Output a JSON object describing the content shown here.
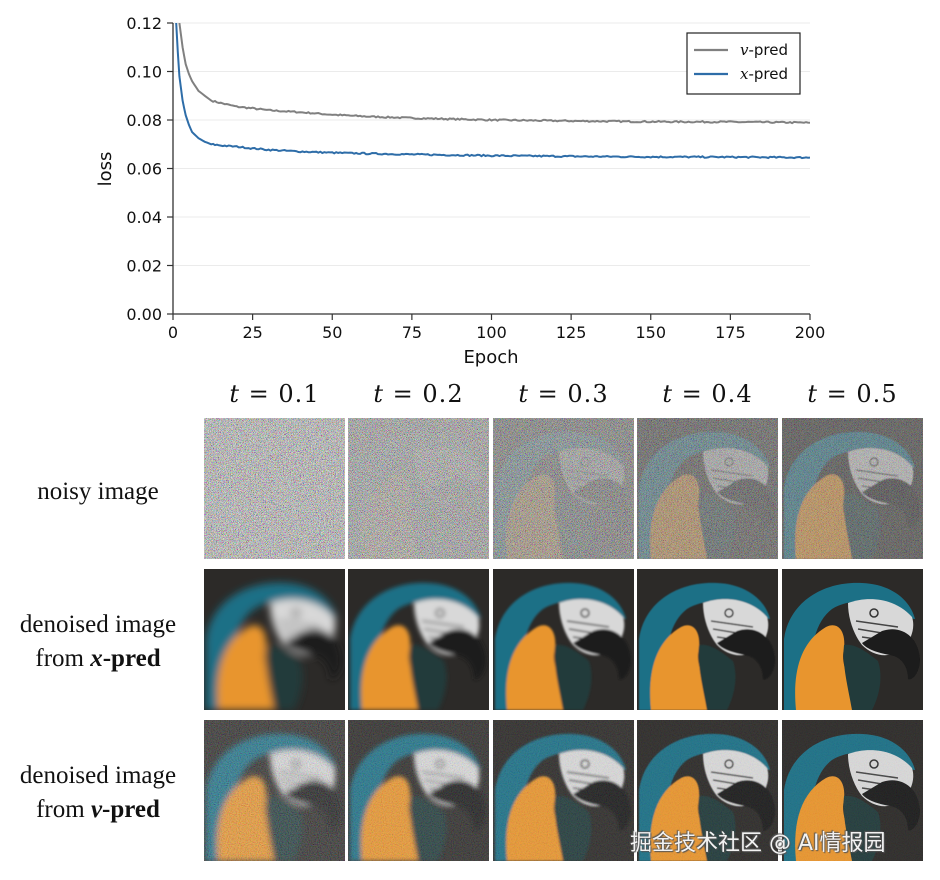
{
  "chart_data": {
    "type": "line",
    "title": "",
    "xlabel": "Epoch",
    "ylabel": "loss",
    "xlim": [
      0,
      200
    ],
    "ylim": [
      0,
      0.12
    ],
    "xticks": [
      0,
      25,
      50,
      75,
      100,
      125,
      150,
      175,
      200
    ],
    "xtick_labels": [
      "0",
      "25",
      "50",
      "75",
      "100",
      "125",
      "150",
      "175",
      "200"
    ],
    "yticks": [
      0,
      0.02,
      0.04,
      0.06,
      0.08,
      0.1,
      0.12
    ],
    "ytick_labels": [
      "0.00",
      "0.02",
      "0.04",
      "0.06",
      "0.08",
      "0.10",
      "0.12"
    ],
    "grid": "horizontal",
    "legend": "top-right",
    "series": [
      {
        "name": "v-pred",
        "legend_var": "v",
        "legend_suffix": "-pred",
        "color": "#808080",
        "x": [
          2,
          3,
          4,
          5,
          6,
          8,
          10,
          12,
          15,
          20,
          25,
          30,
          40,
          50,
          60,
          75,
          100,
          125,
          150,
          175,
          200
        ],
        "y": [
          0.12,
          0.11,
          0.103,
          0.099,
          0.096,
          0.092,
          0.09,
          0.088,
          0.087,
          0.0855,
          0.0848,
          0.084,
          0.0832,
          0.0822,
          0.0815,
          0.0808,
          0.08,
          0.0796,
          0.0793,
          0.0792,
          0.0789
        ]
      },
      {
        "name": "x-pred",
        "legend_var": "x",
        "legend_suffix": "-pred",
        "color": "#2e6da8",
        "x": [
          1,
          1.5,
          2,
          3,
          4,
          5,
          6,
          8,
          10,
          12,
          15,
          20,
          25,
          30,
          40,
          50,
          60,
          75,
          100,
          125,
          150,
          175,
          200
        ],
        "y": [
          0.12,
          0.108,
          0.098,
          0.088,
          0.082,
          0.078,
          0.075,
          0.0725,
          0.071,
          0.07,
          0.0695,
          0.069,
          0.0683,
          0.0677,
          0.067,
          0.0665,
          0.0662,
          0.0658,
          0.0653,
          0.065,
          0.0648,
          0.0647,
          0.0645
        ]
      }
    ]
  },
  "figure": {
    "column_labels": [
      {
        "var": "t",
        "eq": "= 0.1"
      },
      {
        "var": "t",
        "eq": "= 0.2"
      },
      {
        "var": "t",
        "eq": "= 0.3"
      },
      {
        "var": "t",
        "eq": "= 0.4"
      },
      {
        "var": "t",
        "eq": "= 0.5"
      }
    ],
    "rows": [
      {
        "line1": "noisy image",
        "line2_prefix": "",
        "line2_var": "",
        "line2_suffix": "",
        "noise_levels": [
          0.95,
          0.85,
          0.7,
          0.55,
          0.45
        ],
        "sharpness": 1
      },
      {
        "line1": "denoised image",
        "line2_prefix": "from ",
        "line2_var": "x",
        "line2_suffix": "-pred",
        "noise_levels": [
          0,
          0,
          0,
          0,
          0
        ],
        "blur_levels": [
          4,
          2,
          1,
          0.4,
          0.2
        ]
      },
      {
        "line1": "denoised image",
        "line2_prefix": "from ",
        "line2_var": "v",
        "line2_suffix": "-pred",
        "noise_levels": [
          0.25,
          0.18,
          0.12,
          0.08,
          0.06
        ],
        "blur_levels": [
          3,
          2,
          1,
          0.5,
          0.3
        ]
      }
    ],
    "subject": "parrot (macaw)",
    "colors": {
      "background": "#2c2a28",
      "blue": "#1f6f86",
      "orange": "#e8952e",
      "face": "#d8d8d8",
      "beak": "#1a1a1a"
    }
  },
  "watermark": "掘金技术社区 @ AI情报园"
}
